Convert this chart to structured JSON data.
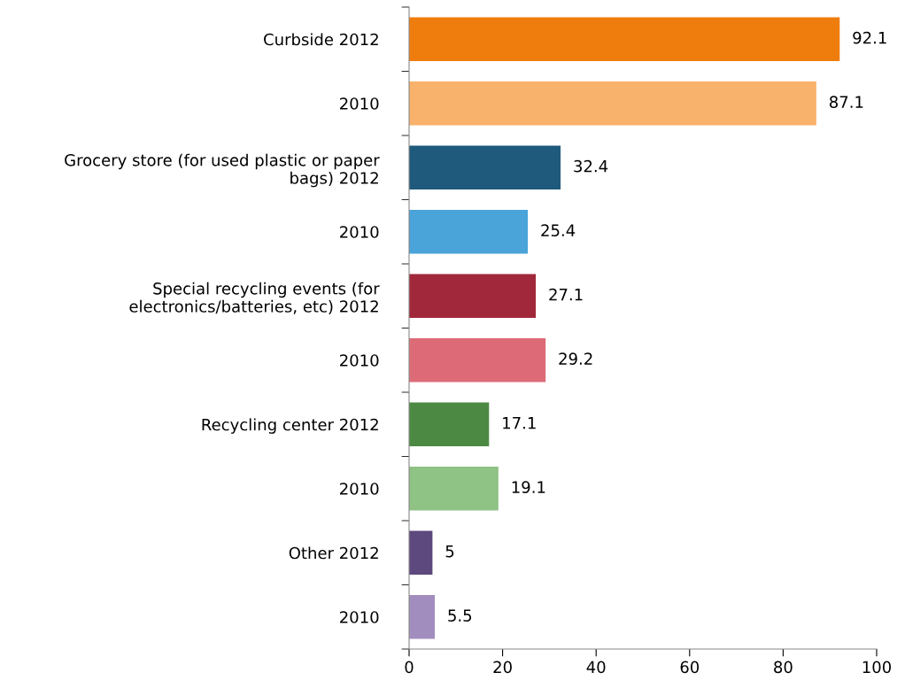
{
  "chart_data": {
    "type": "bar",
    "orientation": "horizontal",
    "categories": [
      "Curbside 2012",
      "2010",
      "Grocery store (for used plastic or paper\nbags) 2012",
      "2010",
      "Special recycling events (for\nelectronics/batteries, etc) 2012",
      "2010",
      "Recycling center 2012",
      "2010",
      "Other 2012",
      "2010"
    ],
    "values": [
      92.1,
      87.1,
      32.4,
      25.4,
      27.1,
      29.2,
      17.1,
      19.1,
      5,
      5.5
    ],
    "colors": [
      "#ef7d0e",
      "#f9b26b",
      "#1f5a7d",
      "#4aa4d9",
      "#a1283a",
      "#dc6b77",
      "#4c8a43",
      "#8fc285",
      "#5d497e",
      "#a28dbf"
    ],
    "xlim": [
      0,
      100
    ],
    "xticks": [
      0,
      20,
      40,
      60,
      80,
      100
    ],
    "data_labels": true,
    "grid": false,
    "legend": false
  }
}
